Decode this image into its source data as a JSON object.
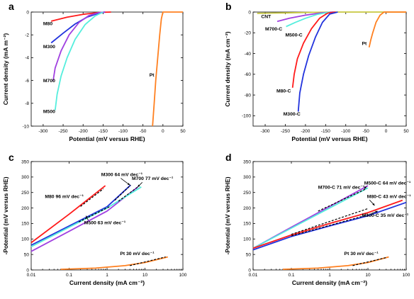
{
  "chart_data": [
    {
      "panel": "a",
      "type": "line",
      "xlabel": "Potential (mV versus RHE)",
      "ylabel": "Current density (mA m⁻²)",
      "xlim": [
        -330,
        50
      ],
      "ylim": [
        -10,
        0
      ],
      "xticks": [
        -300,
        -250,
        -200,
        -150,
        -100,
        -50,
        0,
        50
      ],
      "yticks": [
        0,
        -2,
        -4,
        -6,
        -8,
        -10
      ],
      "series": [
        {
          "name": "M80",
          "color": "#ff1a1a",
          "label_at": [
            -300,
            -1.0
          ],
          "points": [
            [
              -280,
              -0.8
            ],
            [
              -240,
              -0.45
            ],
            [
              -200,
              -0.2
            ],
            [
              -170,
              -0.08
            ],
            [
              -150,
              -0.02
            ],
            [
              -130,
              0
            ]
          ]
        },
        {
          "name": "M300",
          "color": "#2233dd",
          "label_at": [
            -300,
            -3.0
          ],
          "points": [
            [
              -280,
              -2.7
            ],
            [
              -250,
              -1.85
            ],
            [
              -220,
              -1.05
            ],
            [
              -190,
              -0.45
            ],
            [
              -165,
              -0.15
            ],
            [
              -145,
              0
            ]
          ]
        },
        {
          "name": "M700",
          "color": "#a040e0",
          "label_at": [
            -300,
            -6.0
          ],
          "points": [
            [
              -275,
              -6.0
            ],
            [
              -270,
              -4.9
            ],
            [
              -255,
              -3.4
            ],
            [
              -235,
              -2.0
            ],
            [
              -210,
              -0.9
            ],
            [
              -185,
              -0.3
            ],
            [
              -160,
              -0.05
            ],
            [
              -145,
              0
            ]
          ]
        },
        {
          "name": "M500",
          "color": "#55eedd",
          "label_at": [
            -300,
            -8.7
          ],
          "points": [
            [
              -270,
              -8.6
            ],
            [
              -265,
              -7.2
            ],
            [
              -255,
              -5.6
            ],
            [
              -240,
              -4.0
            ],
            [
              -220,
              -2.4
            ],
            [
              -195,
              -1.1
            ],
            [
              -170,
              -0.35
            ],
            [
              -150,
              0
            ]
          ]
        },
        {
          "name": "Pt",
          "color": "#ff8020",
          "label_at": [
            -34,
            -5.5
          ],
          "points": [
            [
              -26,
              -10
            ],
            [
              -22,
              -8
            ],
            [
              -18,
              -6
            ],
            [
              -13,
              -4
            ],
            [
              -8,
              -2
            ],
            [
              -4,
              -0.6
            ],
            [
              0,
              0
            ],
            [
              50,
              0
            ]
          ]
        }
      ]
    },
    {
      "panel": "b",
      "type": "line",
      "xlabel": "Potential (mV versus RHE)",
      "ylabel": "Current density (mA cm⁻²)",
      "xlim": [
        -330,
        50
      ],
      "ylim": [
        -110,
        0
      ],
      "xticks": [
        -300,
        -250,
        -200,
        -150,
        -100,
        -50,
        0,
        50
      ],
      "yticks": [
        0,
        -20,
        -40,
        -60,
        -80,
        -100
      ],
      "series": [
        {
          "name": "CNT",
          "color": "#c8c840",
          "label_at": [
            -310,
            -4
          ],
          "points": [
            [
              -320,
              -1.2
            ],
            [
              -250,
              -0.8
            ],
            [
              -180,
              -0.3
            ],
            [
              -120,
              0
            ],
            [
              50,
              0
            ]
          ]
        },
        {
          "name": "M700-C",
          "color": "#a040e0",
          "label_at": [
            -300,
            -16
          ],
          "points": [
            [
              -270,
              -9
            ],
            [
              -240,
              -6
            ],
            [
              -200,
              -3
            ],
            [
              -160,
              -0.8
            ],
            [
              -130,
              0
            ]
          ]
        },
        {
          "name": "M500-C",
          "color": "#55eedd",
          "label_at": [
            -250,
            -22
          ],
          "points": [
            [
              -248,
              -14
            ],
            [
              -225,
              -10
            ],
            [
              -200,
              -6
            ],
            [
              -170,
              -2.2
            ],
            [
              -140,
              0
            ]
          ]
        },
        {
          "name": "M80-C",
          "color": "#ff1a1a",
          "label_at": [
            -272,
            -76
          ],
          "points": [
            [
              -232,
              -73
            ],
            [
              -228,
              -60
            ],
            [
              -220,
              -45
            ],
            [
              -205,
              -30
            ],
            [
              -185,
              -16
            ],
            [
              -165,
              -6
            ],
            [
              -145,
              -1
            ],
            [
              -125,
              0
            ]
          ]
        },
        {
          "name": "M300-C",
          "color": "#2233dd",
          "label_at": [
            -255,
            -98
          ],
          "points": [
            [
              -218,
              -96
            ],
            [
              -214,
              -78
            ],
            [
              -205,
              -60
            ],
            [
              -192,
              -42
            ],
            [
              -175,
              -24
            ],
            [
              -158,
              -10
            ],
            [
              -140,
              -2
            ],
            [
              -120,
              0
            ]
          ]
        },
        {
          "name": "Pt",
          "color": "#ff8020",
          "label_at": [
            -60,
            -30
          ],
          "points": [
            [
              -42,
              -34
            ],
            [
              -38,
              -27
            ],
            [
              -33,
              -20
            ],
            [
              -25,
              -10
            ],
            [
              -15,
              -3
            ],
            [
              -5,
              0
            ],
            [
              50,
              0
            ]
          ]
        }
      ]
    },
    {
      "panel": "c",
      "type": "line",
      "xscale": "log",
      "xlabel": "Current density (mA cm⁻²)",
      "ylabel": "-Potential (mV versus RHE)",
      "xlim": [
        0.01,
        100
      ],
      "ylim": [
        0,
        350
      ],
      "xticks": [
        0.01,
        0.1,
        1,
        10,
        100
      ],
      "xticklabels": [
        "0.01",
        "0.1",
        "1",
        "10",
        "100"
      ],
      "yticks": [
        0,
        50,
        100,
        150,
        200,
        250,
        300,
        350
      ],
      "series": [
        {
          "name": "M80",
          "color": "#ff1a1a",
          "points": [
            [
              0.01,
              88
            ],
            [
              0.1,
              180
            ],
            [
              0.9,
              272
            ]
          ]
        },
        {
          "name": "M300",
          "color": "#2233dd",
          "points": [
            [
              0.01,
              80
            ],
            [
              0.1,
              142
            ],
            [
              1,
              204
            ],
            [
              4.2,
              274
            ]
          ]
        },
        {
          "name": "M700",
          "color": "#a040e0",
          "points": [
            [
              0.01,
              60
            ],
            [
              0.1,
              125
            ],
            [
              1,
              190
            ],
            [
              6.5,
              268
            ]
          ]
        },
        {
          "name": "M500",
          "color": "#55eedd",
          "points": [
            [
              0.01,
              75
            ],
            [
              0.1,
              138
            ],
            [
              1,
              200
            ],
            [
              8,
              268
            ]
          ]
        },
        {
          "name": "Pt",
          "color": "#ff8020",
          "points": [
            [
              0.06,
              2
            ],
            [
              0.5,
              6
            ],
            [
              3,
              14
            ],
            [
              10,
              24
            ],
            [
              40,
              42
            ]
          ]
        }
      ],
      "annotations": [
        {
          "text": "M80 96 mV dec⁻¹",
          "at": [
            0.023,
            232
          ]
        },
        {
          "text": "M300 64 mV dec⁻¹",
          "at": [
            0.7,
            303
          ]
        },
        {
          "text": "M700 77 mV dec⁻¹",
          "at": [
            4.5,
            290
          ]
        },
        {
          "text": "M500 63 mV dec⁻¹",
          "at": [
            0.25,
            148
          ]
        },
        {
          "text": "Pt 30 mV dec⁻¹",
          "at": [
            2.2,
            48
          ]
        }
      ],
      "fit_segments": [
        [
          [
            0.2,
            205
          ],
          [
            0.8,
            262
          ]
        ],
        [
          [
            1.6,
            225
          ],
          [
            4.2,
            274
          ]
        ],
        [
          [
            2,
            222
          ],
          [
            6.5,
            268
          ]
        ],
        [
          [
            0.18,
            155
          ],
          [
            1.2,
            205
          ]
        ],
        [
          [
            4,
            14
          ],
          [
            35,
            42
          ]
        ]
      ],
      "arrows": [
        {
          "from": [
            2.3,
            296
          ],
          "to": [
            4.0,
            274
          ]
        },
        {
          "from": [
            8.5,
            283
          ],
          "to": [
            6.4,
            268
          ]
        },
        {
          "from": [
            0.32,
            160
          ],
          "to": [
            0.28,
            175
          ]
        }
      ]
    },
    {
      "panel": "d",
      "type": "line",
      "xscale": "log",
      "xlabel": "Current density (mA cm⁻²)",
      "ylabel": "-Potential (mV versus RHE)",
      "xlim": [
        0.01,
        100
      ],
      "ylim": [
        0,
        350
      ],
      "xticks": [
        0.01,
        0.1,
        1,
        10,
        100
      ],
      "xticklabels": [
        "0.01",
        "0.1",
        "1",
        "10",
        "100"
      ],
      "yticks": [
        0,
        50,
        100,
        150,
        200,
        250,
        300,
        350
      ],
      "series": [
        {
          "name": "M700-C",
          "color": "#a040e0",
          "points": [
            [
              0.01,
              70
            ],
            [
              0.1,
              138
            ],
            [
              1,
              205
            ],
            [
              10,
              272
            ]
          ]
        },
        {
          "name": "M500-C",
          "color": "#55eedd",
          "points": [
            [
              0.01,
              70
            ],
            [
              0.1,
              135
            ],
            [
              1,
              200
            ],
            [
              10,
              265
            ]
          ]
        },
        {
          "name": "M80-C",
          "color": "#ff1a1a",
          "points": [
            [
              0.01,
              70
            ],
            [
              0.1,
              113
            ],
            [
              1,
              150
            ],
            [
              10,
              185
            ],
            [
              80,
              225
            ]
          ]
        },
        {
          "name": "M300-C",
          "color": "#2233dd",
          "points": [
            [
              0.01,
              65
            ],
            [
              0.1,
              108
            ],
            [
              1,
              142
            ],
            [
              10,
              175
            ],
            [
              100,
              218
            ]
          ]
        },
        {
          "name": "Pt",
          "color": "#ff8020",
          "points": [
            [
              0.06,
              2
            ],
            [
              0.5,
              6
            ],
            [
              3,
              14
            ],
            [
              10,
              24
            ],
            [
              35,
              42
            ]
          ]
        }
      ],
      "annotations": [
        {
          "text": "M500-C 64 mV dec⁻¹",
          "at": [
            8,
            276
          ]
        },
        {
          "text": "M700-C 71 mV dec⁻¹",
          "at": [
            0.5,
            262
          ]
        },
        {
          "text": "M80-C 43 mV dec⁻¹",
          "at": [
            9.5,
            232
          ]
        },
        {
          "text": "M300-C 35 mV dec⁻¹",
          "at": [
            7,
            172
          ]
        },
        {
          "text": "Pt 30 mV dec⁻¹",
          "at": [
            2.4,
            48
          ]
        }
      ],
      "fit_segments": [
        [
          [
            0.5,
            190
          ],
          [
            9,
            262
          ]
        ],
        [
          [
            0.1,
            115
          ],
          [
            10,
            198
          ]
        ],
        [
          [
            0.1,
            110
          ],
          [
            10,
            178
          ]
        ],
        [
          [
            4,
            14
          ],
          [
            30,
            40
          ]
        ]
      ],
      "arrows": [
        {
          "from": [
            9.2,
            270
          ],
          "to": [
            8.0,
            262
          ]
        },
        {
          "from": [
            11,
            226
          ],
          "to": [
            15,
            208
          ]
        },
        {
          "from": [
            12,
            182
          ],
          "to": [
            18,
            190
          ]
        }
      ]
    }
  ]
}
